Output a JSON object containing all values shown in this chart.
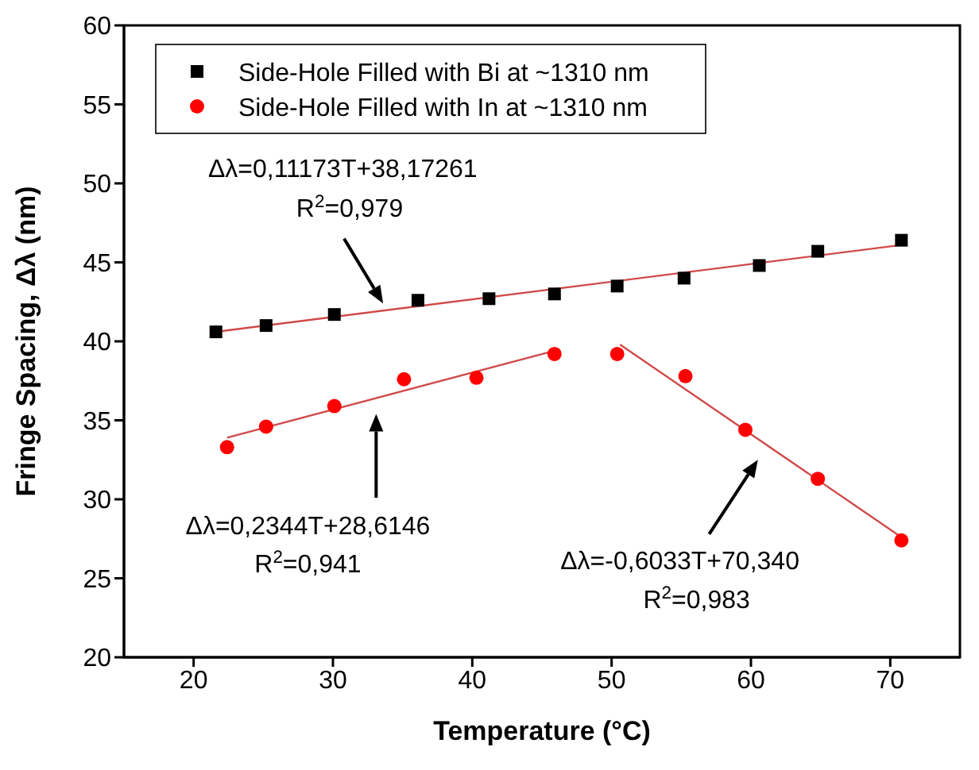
{
  "chart_data": {
    "type": "scatter",
    "xlabel": "Temperature (°C)",
    "ylabel": "Fringe Spacing, Δλ (nm)",
    "xlim": [
      15,
      75
    ],
    "xticks": [
      20,
      30,
      40,
      50,
      60,
      70
    ],
    "ylim": [
      20,
      60
    ],
    "yticks": [
      20,
      25,
      30,
      35,
      40,
      45,
      50,
      55,
      60
    ],
    "grid": false,
    "legend": "top left",
    "series": [
      {
        "name": "Side-Hole Filled with Bi at ~1310 nm",
        "color": "#000000",
        "marker": "square",
        "x": [
          21.6,
          25.2,
          30.1,
          36.1,
          41.2,
          45.9,
          50.4,
          55.2,
          60.6,
          64.8,
          70.8
        ],
        "values": [
          40.6,
          41.0,
          41.7,
          42.6,
          42.7,
          43.0,
          43.5,
          44.0,
          44.8,
          45.7,
          46.4
        ]
      },
      {
        "name": "Side-Hole Filled with In at ~1310 nm",
        "color": "#ff0000",
        "marker": "circle",
        "x": [
          22.4,
          25.2,
          30.1,
          35.1,
          40.3,
          45.9,
          50.4,
          55.3,
          59.6,
          64.8,
          70.8
        ],
        "values": [
          33.3,
          34.6,
          35.9,
          37.6,
          37.7,
          39.2,
          39.2,
          37.8,
          34.4,
          31.3,
          27.4
        ]
      },
      {
        "type": "line",
        "color": "#d04a4a",
        "marker": "none",
        "x": [
          21.6,
          70.8
        ],
        "values": [
          40.6,
          46.1
        ]
      },
      {
        "type": "line",
        "color": "#d04a4a",
        "marker": "none",
        "x": [
          22.4,
          45.9
        ],
        "values": [
          33.9,
          39.4
        ]
      },
      {
        "type": "line",
        "color": "#d04a4a",
        "marker": "none",
        "x": [
          50.6,
          70.8
        ],
        "values": [
          39.8,
          27.6
        ]
      }
    ],
    "annotations": [
      "Δλ=0,11173T+38,17261",
      "R$^{2}$=0,979",
      "Δλ=0,2344T+28,6146",
      "R$^{2}$=0,941",
      "Δλ=-0,6033T+70,340",
      "R$^{2}$=0,983"
    ]
  }
}
